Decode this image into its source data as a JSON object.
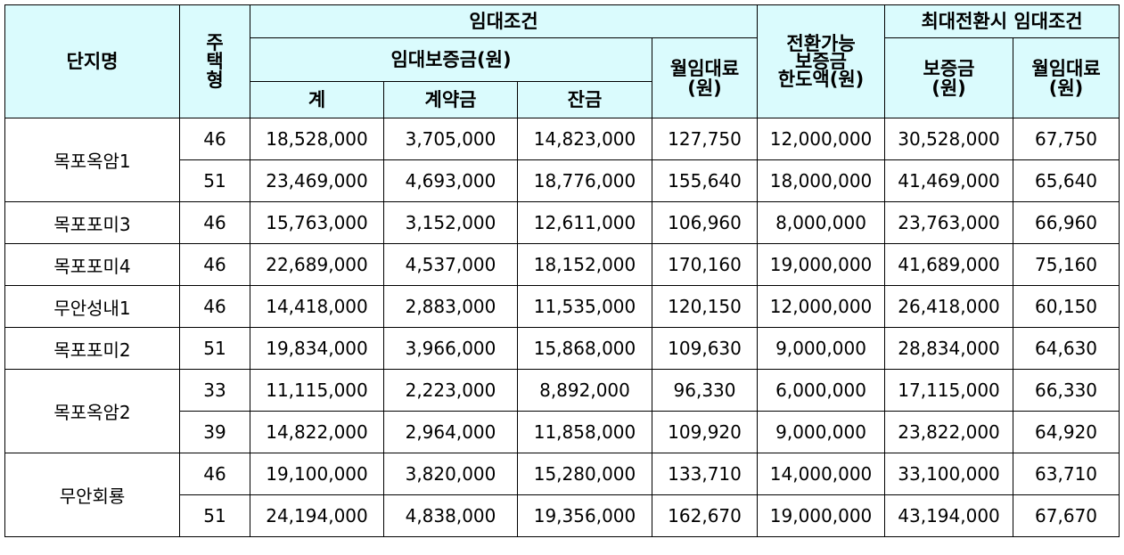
{
  "headers": {
    "complex_name": "단지명",
    "housing_type": "주택형",
    "rental_conditions": "임대조건",
    "deposit_group": "임대보증금(원)",
    "total": "계",
    "contract_fee": "계약금",
    "balance": "잔금",
    "monthly_rent": "월임대료\n(원)",
    "convertible_limit": "전환가능\n보증금\n한도액(원)",
    "max_conversion": "최대전환시 임대조건",
    "max_deposit": "보증금\n(원)",
    "max_monthly_rent": "월임대료\n(원)"
  },
  "groups": [
    {
      "name": "목포옥암1",
      "rows": [
        {
          "type": "46",
          "total": "18,528,000",
          "contract": "3,705,000",
          "balance": "14,823,000",
          "rent": "127,750",
          "limit": "12,000,000",
          "max_deposit": "30,528,000",
          "max_rent": "67,750"
        },
        {
          "type": "51",
          "total": "23,469,000",
          "contract": "4,693,000",
          "balance": "18,776,000",
          "rent": "155,640",
          "limit": "18,000,000",
          "max_deposit": "41,469,000",
          "max_rent": "65,640"
        }
      ]
    },
    {
      "name": "목포포미3",
      "rows": [
        {
          "type": "46",
          "total": "15,763,000",
          "contract": "3,152,000",
          "balance": "12,611,000",
          "rent": "106,960",
          "limit": "8,000,000",
          "max_deposit": "23,763,000",
          "max_rent": "66,960"
        }
      ]
    },
    {
      "name": "목포포미4",
      "rows": [
        {
          "type": "46",
          "total": "22,689,000",
          "contract": "4,537,000",
          "balance": "18,152,000",
          "rent": "170,160",
          "limit": "19,000,000",
          "max_deposit": "41,689,000",
          "max_rent": "75,160"
        }
      ]
    },
    {
      "name": "무안성내1",
      "rows": [
        {
          "type": "46",
          "total": "14,418,000",
          "contract": "2,883,000",
          "balance": "11,535,000",
          "rent": "120,150",
          "limit": "12,000,000",
          "max_deposit": "26,418,000",
          "max_rent": "60,150"
        }
      ]
    },
    {
      "name": "목포포미2",
      "rows": [
        {
          "type": "51",
          "total": "19,834,000",
          "contract": "3,966,000",
          "balance": "15,868,000",
          "rent": "109,630",
          "limit": "9,000,000",
          "max_deposit": "28,834,000",
          "max_rent": "64,630"
        }
      ]
    },
    {
      "name": "목포옥암2",
      "rows": [
        {
          "type": "33",
          "total": "11,115,000",
          "contract": "2,223,000",
          "balance": "8,892,000",
          "rent": "96,330",
          "limit": "6,000,000",
          "max_deposit": "17,115,000",
          "max_rent": "66,330"
        },
        {
          "type": "39",
          "total": "14,822,000",
          "contract": "2,964,000",
          "balance": "11,858,000",
          "rent": "109,920",
          "limit": "9,000,000",
          "max_deposit": "23,822,000",
          "max_rent": "64,920"
        }
      ]
    },
    {
      "name": "무안회룡",
      "rows": [
        {
          "type": "46",
          "total": "19,100,000",
          "contract": "3,820,000",
          "balance": "15,280,000",
          "rent": "133,710",
          "limit": "14,000,000",
          "max_deposit": "33,100,000",
          "max_rent": "63,710"
        },
        {
          "type": "51",
          "total": "24,194,000",
          "contract": "4,838,000",
          "balance": "19,356,000",
          "rent": "162,670",
          "limit": "19,000,000",
          "max_deposit": "43,194,000",
          "max_rent": "67,670"
        }
      ]
    }
  ]
}
